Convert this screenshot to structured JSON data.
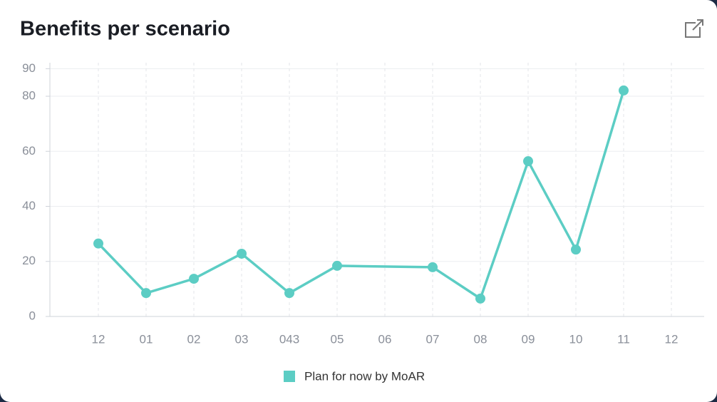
{
  "chart_data": {
    "type": "line",
    "title": "Benefits per scenario",
    "categories": [
      "12",
      "01",
      "02",
      "03",
      "043",
      "05",
      "06",
      "07",
      "08",
      "09",
      "10",
      "11",
      "12"
    ],
    "series": [
      {
        "name": "Plan for now by MoAR",
        "color": "#5ccdc4",
        "values": [
          26.5,
          8.5,
          13.7,
          22.8,
          8.5,
          18.4,
          null,
          17.9,
          6.5,
          56.4,
          24.3,
          82.1,
          null
        ]
      }
    ],
    "ylim": [
      0,
      90
    ],
    "yticks": [
      0,
      20,
      40,
      60,
      80,
      90
    ],
    "grid": true,
    "span_gaps": true,
    "legend": "bottom"
  }
}
